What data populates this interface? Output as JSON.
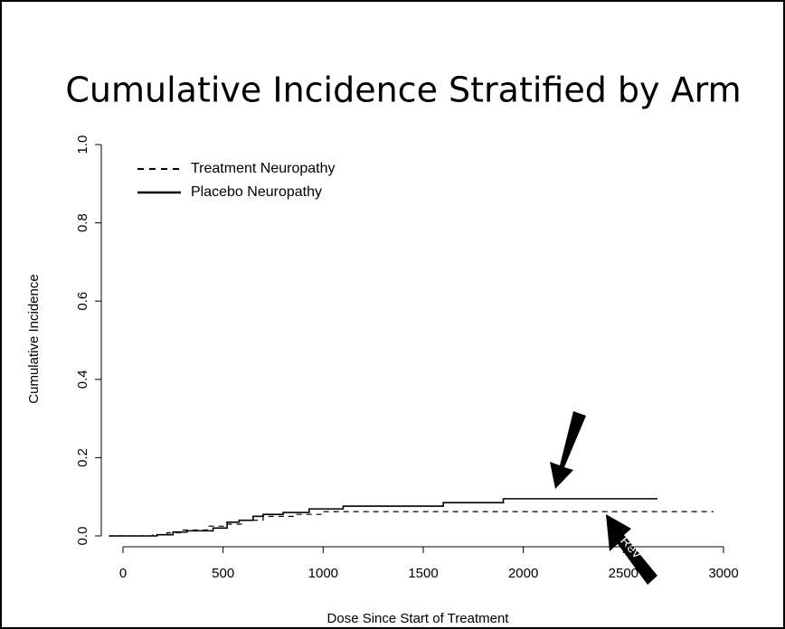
{
  "chart_data": {
    "type": "step",
    "title": "Cumulative Incidence Stratified by Arm",
    "x_label": "Dose Since Start of Treatment",
    "y_label": "Cumulative Incidence",
    "annotation": "Rev",
    "xlim": [
      0,
      3000
    ],
    "xticks": [
      0,
      500,
      1000,
      1500,
      2000,
      2500,
      3000
    ],
    "ylim": [
      0,
      1
    ],
    "yticks": [
      {
        "value": 0,
        "label": "0.0"
      },
      {
        "value": 0.2,
        "label": "0.2"
      },
      {
        "value": 0.4,
        "label": "0.4"
      },
      {
        "value": 0.6,
        "label": "0.6"
      },
      {
        "value": 0.8,
        "label": "0.8"
      },
      {
        "value": 1,
        "label": "1.0"
      }
    ],
    "legend": "top-left",
    "series": [
      {
        "name": "Treatment Neuropathy",
        "color": "#000000",
        "dash": true,
        "x": [
          -70,
          150,
          220,
          300,
          420,
          520,
          600,
          700,
          850,
          1000,
          2950
        ],
        "values": [
          0,
          0.003,
          0.008,
          0.015,
          0.025,
          0.03,
          0.04,
          0.05,
          0.055,
          0.062,
          0.062
        ]
      },
      {
        "name": "Placebo Neuropathy",
        "color": "#000000",
        "dash": false,
        "x": [
          -70,
          170,
          250,
          320,
          450,
          520,
          580,
          650,
          700,
          800,
          930,
          1100,
          1600,
          1900,
          2670
        ],
        "values": [
          0,
          0.003,
          0.01,
          0.013,
          0.02,
          0.035,
          0.04,
          0.05,
          0.055,
          0.06,
          0.069,
          0.076,
          0.085,
          0.095,
          0.095
        ]
      }
    ]
  }
}
